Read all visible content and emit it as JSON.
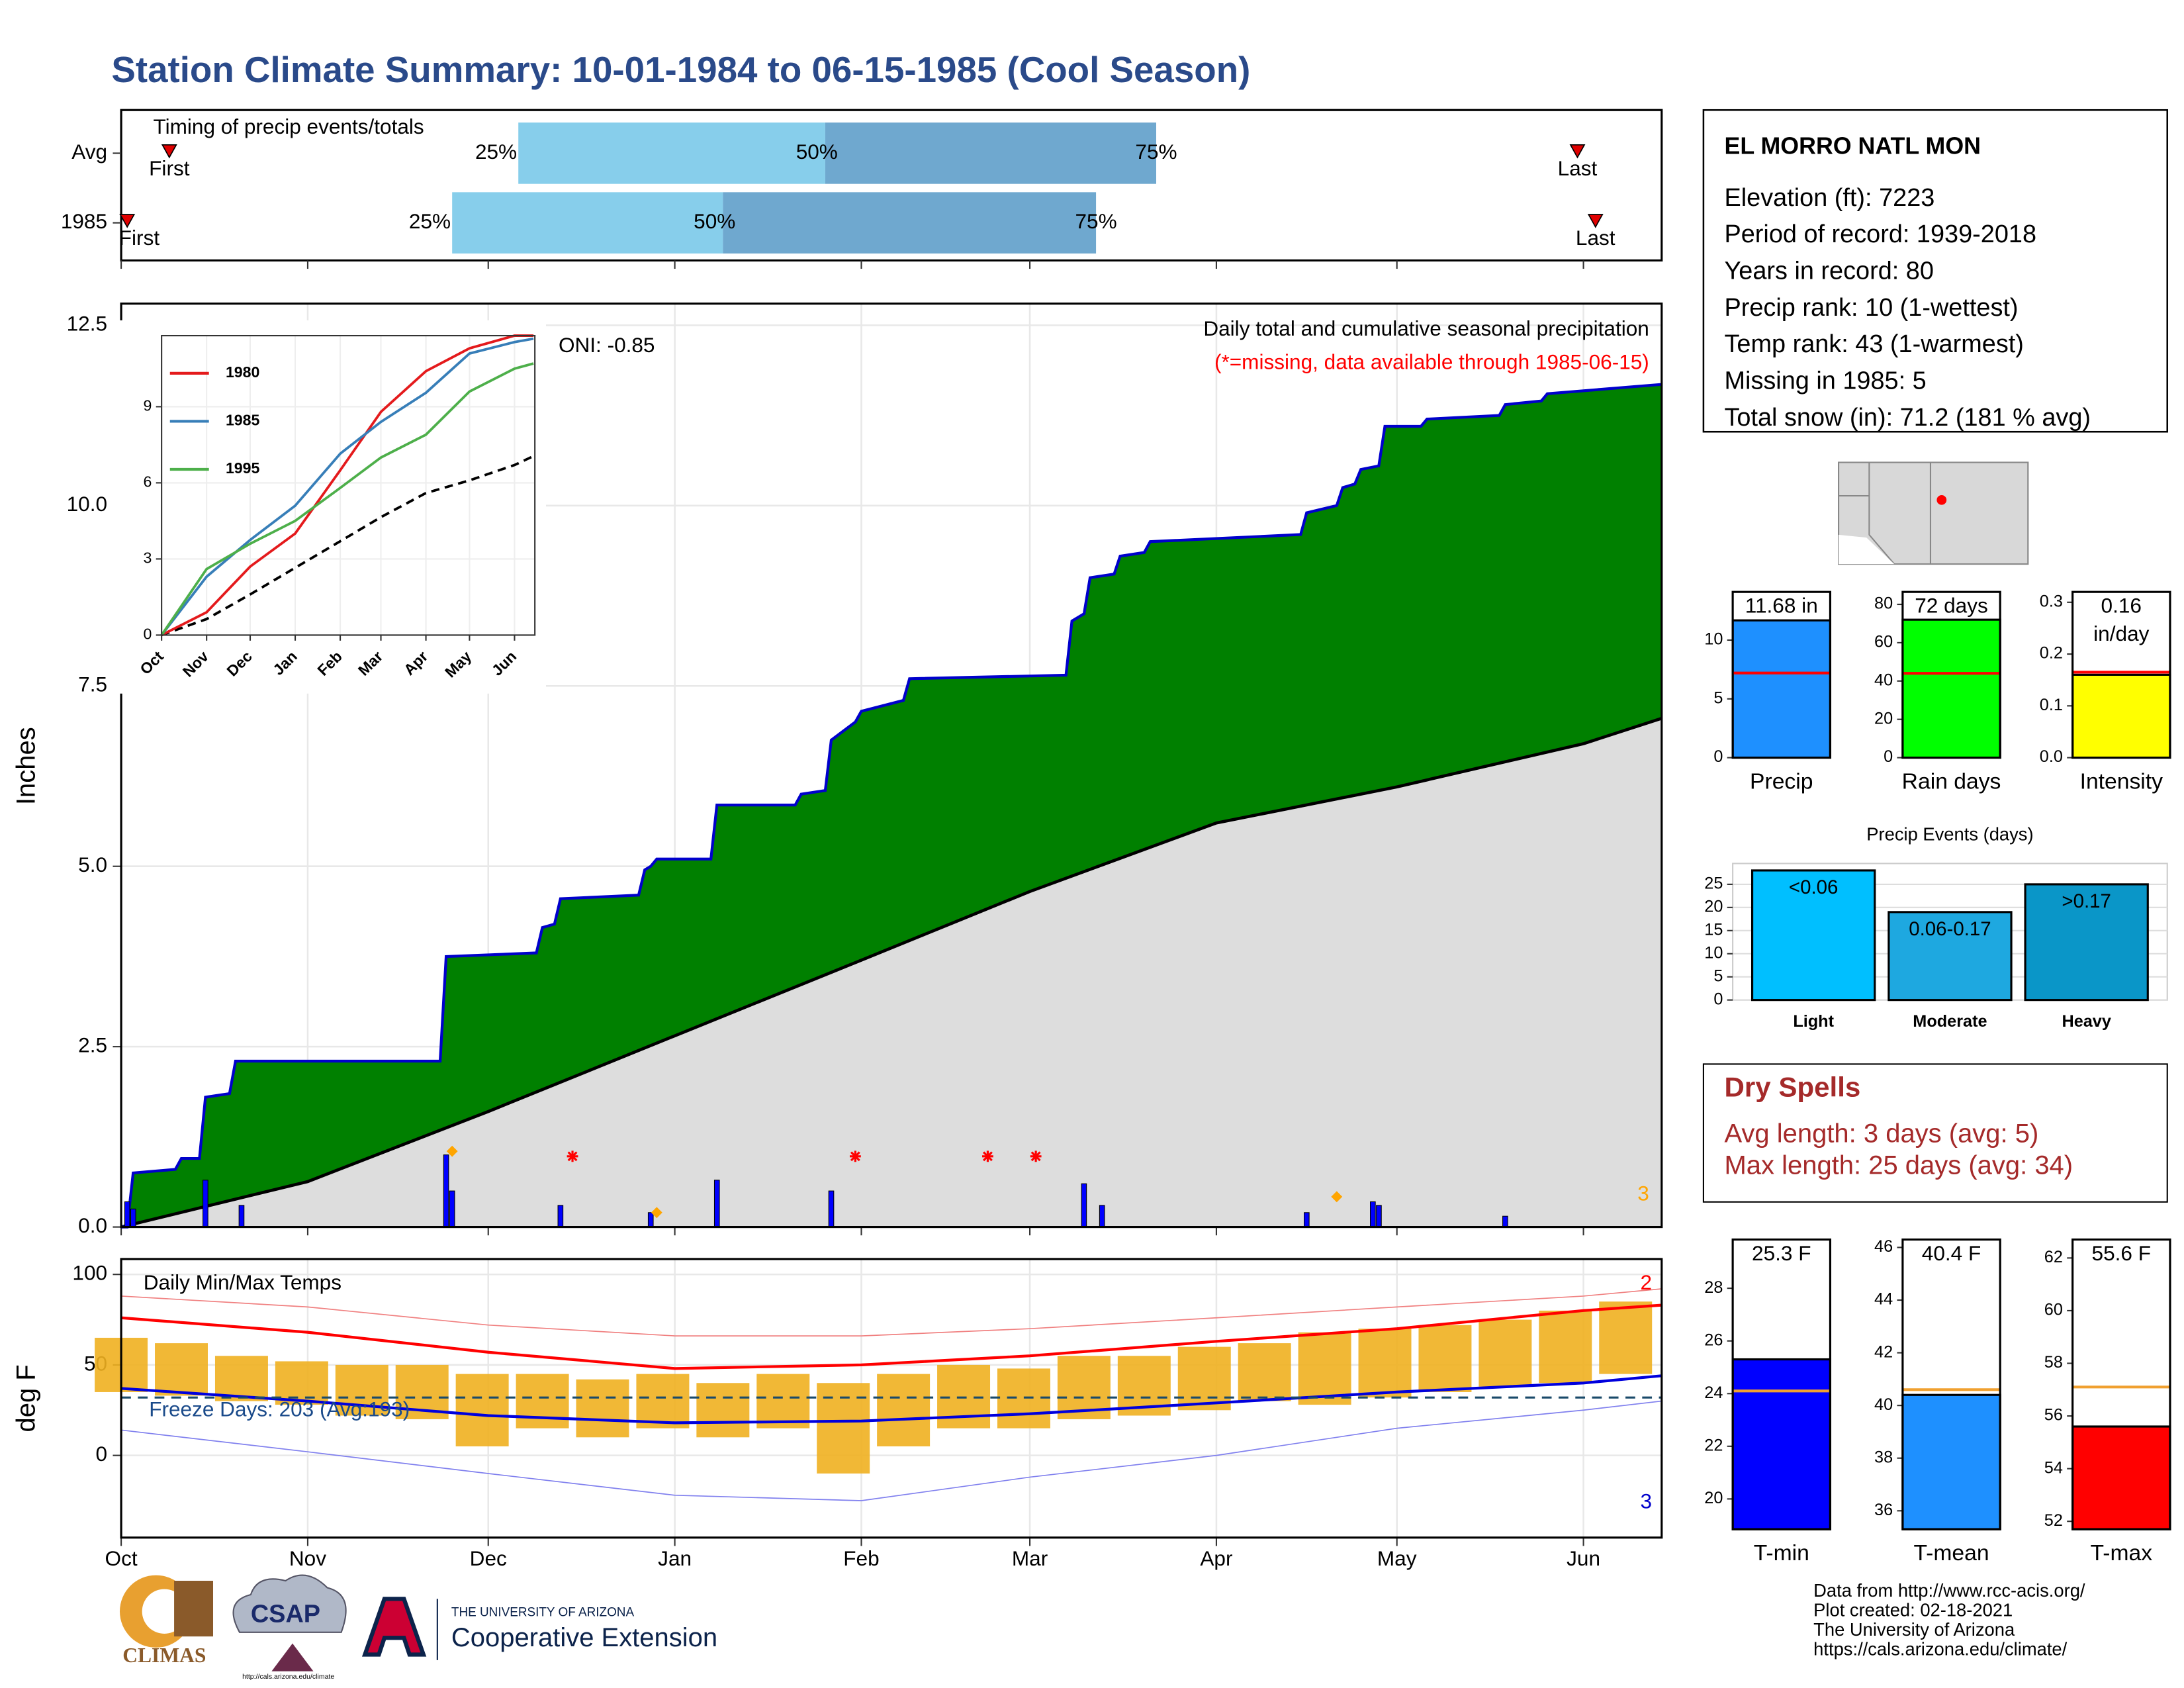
{
  "title": "Station Climate Summary: 10-01-1984 to 06-15-1985 (Cool Season)",
  "chart_data": [
    {
      "type": "timing",
      "title": "Timing of precip events/totals",
      "xlim": [
        0,
        256
      ],
      "labels": {
        "first": "First",
        "last": "Last",
        "q25": "25%",
        "q50": "50%",
        "q75": "75%"
      },
      "colors": {
        "early": "#87ceeb",
        "late": "#6fa8cf",
        "marker": "#e00000"
      },
      "rows": [
        {
          "name": "Avg",
          "first": 8,
          "q25": 66,
          "q50": 117,
          "q75": 172,
          "last": 242
        },
        {
          "name": "1985",
          "first": 1,
          "q25": 55,
          "q50": 100,
          "q75": 162,
          "last": 245
        }
      ]
    },
    {
      "type": "cumulative",
      "title": "Daily total and cumulative seasonal precipitation",
      "subtitle": "(*=missing, data available through 1985-06-15)",
      "annotation": "ONI: -0.85",
      "corner_note": "3",
      "ylabel": "Inches",
      "xlim": [
        0,
        256
      ],
      "ylim": [
        0,
        12.8
      ],
      "grid": true,
      "yticks": [
        {
          "value": 0,
          "label": "0.0"
        },
        {
          "value": 2.5,
          "label": "2.5"
        },
        {
          "value": 5,
          "label": "5.0"
        },
        {
          "value": 7.5,
          "label": "7.5"
        },
        {
          "value": 10,
          "label": "10.0"
        },
        {
          "value": 12.5,
          "label": "12.5"
        }
      ],
      "cumulative": {
        "color": "#0000cc",
        "fill": "#008000",
        "x": [
          0,
          1,
          2,
          9,
          10,
          13,
          14,
          18,
          19,
          53,
          54,
          69,
          70,
          72,
          73,
          86,
          87,
          88,
          89,
          98,
          99,
          112,
          113,
          117,
          118,
          122,
          123,
          130,
          131,
          157,
          158,
          160,
          161,
          165,
          166,
          170,
          171,
          196,
          197,
          202,
          203,
          205,
          206,
          209,
          210,
          216,
          217,
          229,
          230,
          236,
          237,
          256
        ],
        "values": [
          0,
          0,
          0.75,
          0.8,
          0.95,
          0.95,
          1.8,
          1.85,
          2.3,
          2.3,
          3.75,
          3.8,
          4.15,
          4.2,
          4.55,
          4.6,
          4.95,
          5.0,
          5.1,
          5.1,
          5.85,
          5.85,
          6.0,
          6.05,
          6.75,
          7.0,
          7.15,
          7.3,
          7.6,
          7.65,
          8.4,
          8.5,
          9.0,
          9.05,
          9.3,
          9.35,
          9.5,
          9.6,
          9.9,
          10.0,
          10.25,
          10.3,
          10.5,
          10.55,
          11.1,
          11.1,
          11.2,
          11.25,
          11.4,
          11.45,
          11.55,
          11.68
        ]
      },
      "average": {
        "color": "#000000",
        "fill": "#dddddd",
        "x": [
          0,
          31,
          61,
          92,
          123,
          151,
          182,
          212,
          243,
          256
        ],
        "values": [
          0,
          0.63,
          1.6,
          2.65,
          3.7,
          4.65,
          5.6,
          6.1,
          6.7,
          7.05
        ]
      },
      "daily": {
        "color": "#0000ff",
        "x": [
          1,
          2,
          14,
          20,
          54,
          55,
          73,
          88,
          99,
          118,
          160,
          163,
          197,
          208,
          209,
          230
        ],
        "values": [
          0.35,
          0.25,
          0.65,
          0.3,
          1.0,
          0.5,
          0.3,
          0.2,
          0.65,
          0.5,
          0.6,
          0.3,
          0.2,
          0.35,
          0.3,
          0.15
        ]
      },
      "missing": {
        "color": "#ff0000",
        "x": [
          75,
          122,
          144,
          152
        ],
        "values": [
          0.98,
          0.98,
          0.98,
          0.98
        ]
      },
      "flags": {
        "color": "#ffa500",
        "x": [
          55,
          89,
          202
        ],
        "values": [
          1.05,
          0.2,
          0.42
        ]
      }
    },
    {
      "type": "inset",
      "xlim": [
        0,
        257
      ],
      "ylim": [
        0,
        11.8
      ],
      "yticks": [
        0,
        3,
        6,
        9
      ],
      "xticks": [
        {
          "value": 0,
          "label": "Oct"
        },
        {
          "value": 31,
          "label": "Nov"
        },
        {
          "value": 61,
          "label": "Dec"
        },
        {
          "value": 92,
          "label": "Jan"
        },
        {
          "value": 123,
          "label": "Feb"
        },
        {
          "value": 151,
          "label": "Mar"
        },
        {
          "value": 182,
          "label": "Apr"
        },
        {
          "value": 212,
          "label": "May"
        },
        {
          "value": 243,
          "label": "Jun"
        }
      ],
      "x": [
        0,
        31,
        61,
        92,
        123,
        151,
        182,
        212,
        243,
        256
      ],
      "series": [
        {
          "name": "1980",
          "color": "#e41a1c",
          "values": [
            0,
            0.9,
            2.7,
            4.0,
            6.5,
            8.8,
            10.4,
            11.3,
            11.8,
            11.8
          ]
        },
        {
          "name": "1985",
          "color": "#377eb8",
          "values": [
            0,
            2.3,
            3.75,
            5.1,
            7.15,
            8.4,
            9.55,
            11.1,
            11.55,
            11.68
          ]
        },
        {
          "name": "1995",
          "color": "#4daf4a",
          "values": [
            0,
            2.6,
            3.6,
            4.5,
            5.8,
            7.0,
            7.9,
            9.6,
            10.5,
            10.7
          ]
        }
      ],
      "average": {
        "color": "#000000",
        "values": [
          0,
          0.63,
          1.6,
          2.65,
          3.7,
          4.65,
          5.6,
          6.1,
          6.7,
          7.05
        ]
      }
    },
    {
      "type": "temperature",
      "title": "Daily Min/Max Temps",
      "ylabel": "deg F",
      "annotation": "Freeze Days: 203 (Avg:193)",
      "freeze": 32,
      "xlim": [
        0,
        256
      ],
      "ylim": [
        -45.4,
        108.5
      ],
      "yticks": [
        0,
        50,
        100
      ],
      "grid": true,
      "xticks": [
        {
          "value": 0,
          "label": "Oct"
        },
        {
          "value": 31,
          "label": "Nov"
        },
        {
          "value": 61,
          "label": "Dec"
        },
        {
          "value": 92,
          "label": "Jan"
        },
        {
          "value": 123,
          "label": "Feb"
        },
        {
          "value": 151,
          "label": "Mar"
        },
        {
          "value": 182,
          "label": "Apr"
        },
        {
          "value": 212,
          "label": "May"
        },
        {
          "value": 243,
          "label": "Jun"
        }
      ],
      "x": [
        0,
        31,
        61,
        92,
        123,
        151,
        182,
        212,
        243,
        256
      ],
      "series": [
        {
          "color": "#f08080",
          "width": 0.8,
          "values": [
            88,
            82,
            72,
            66,
            66,
            70,
            76,
            82,
            88,
            92
          ]
        },
        {
          "color": "#ff0000",
          "width": 2,
          "values": [
            76,
            68,
            57,
            48,
            50,
            55,
            63,
            70,
            80,
            83
          ]
        },
        {
          "color": "#0000dd",
          "width": 2,
          "values": [
            37,
            30,
            22,
            18,
            19,
            23,
            29,
            35,
            40,
            44
          ]
        },
        {
          "color": "#8080ee",
          "width": 0.8,
          "values": [
            14,
            2,
            -10,
            -22,
            -25,
            -12,
            0,
            15,
            25,
            30
          ]
        }
      ],
      "ranges": {
        "color": "#f0b020",
        "x": [
          0,
          10,
          20,
          30,
          40,
          50,
          60,
          70,
          80,
          90,
          100,
          110,
          120,
          130,
          140,
          150,
          160,
          170,
          180,
          190,
          200,
          210,
          220,
          230,
          240,
          250
        ],
        "low": [
          35,
          33,
          30,
          28,
          22,
          20,
          5,
          15,
          10,
          15,
          10,
          15,
          -10,
          5,
          15,
          15,
          20,
          22,
          25,
          30,
          28,
          32,
          35,
          38,
          40,
          45
        ],
        "high": [
          65,
          62,
          55,
          52,
          50,
          50,
          45,
          45,
          42,
          45,
          40,
          45,
          40,
          45,
          50,
          48,
          55,
          55,
          60,
          62,
          68,
          70,
          72,
          75,
          80,
          85
        ]
      },
      "notes": [
        {
          "text": "2",
          "color": "#ff0000"
        },
        {
          "text": "3",
          "color": "#0000cc"
        }
      ]
    },
    {
      "type": "gauge",
      "label": "Precip",
      "value": 11.68,
      "value_label": "11.68 in",
      "normal": 7.2,
      "color": "#1e90ff",
      "normal_color": "#ff0000",
      "ylim": [
        0,
        14.1
      ],
      "yticks": [
        0,
        5,
        10
      ]
    },
    {
      "type": "gauge",
      "label": "Rain days",
      "value": 72,
      "value_label": "72 days",
      "normal": 44,
      "color": "#00ff00",
      "normal_color": "#ff0000",
      "ylim": [
        0,
        86.5
      ],
      "yticks": [
        0,
        20,
        40,
        60,
        80
      ]
    },
    {
      "type": "gauge",
      "label": "Intensity",
      "value": 0.16,
      "value_label": "0.16 in/day",
      "normal": 0.165,
      "color": "#ffff00",
      "normal_color": "#ff0000",
      "ylim": [
        0,
        0.32
      ],
      "yticks": [
        {
          "value": 0,
          "label": "0.0"
        },
        {
          "value": 0.1,
          "label": "0.1"
        },
        {
          "value": 0.2,
          "label": "0.2"
        },
        {
          "value": 0.3,
          "label": "0.3"
        }
      ]
    },
    {
      "type": "bar",
      "title": "Precip Events (days)",
      "categories": [
        "Light",
        "Moderate",
        "Heavy"
      ],
      "values": [
        28,
        19,
        25
      ],
      "value_labels": [
        "<0.06",
        "0.06-0.17",
        ">0.17"
      ],
      "colors": [
        "#00bfff",
        "#1ea8e0",
        "#0a96c8"
      ],
      "ylim": [
        0,
        29.5
      ],
      "yticks": [
        0,
        5,
        10,
        15,
        20,
        25
      ]
    },
    {
      "type": "gauge",
      "label": "T-min",
      "value": 25.3,
      "value_label": "25.3 F",
      "normal": 24.1,
      "color": "#0000ff",
      "normal_color": "#f0a030",
      "ylim": [
        18.85,
        29.85
      ],
      "yticks": [
        20,
        22,
        24,
        26,
        28
      ]
    },
    {
      "type": "gauge",
      "label": "T-mean",
      "value": 40.4,
      "value_label": "40.4 F",
      "normal": 40.6,
      "color": "#1e90ff",
      "normal_color": "#f0a030",
      "ylim": [
        35.3,
        46.3
      ],
      "yticks": [
        36,
        38,
        40,
        42,
        44,
        46
      ]
    },
    {
      "type": "gauge",
      "label": "T-max",
      "value": 55.6,
      "value_label": "55.6 F",
      "normal": 57.1,
      "color": "#ff0000",
      "normal_color": "#f0a030",
      "ylim": [
        51.7,
        62.7
      ],
      "yticks": [
        52,
        54,
        56,
        58,
        60,
        62
      ]
    }
  ],
  "station": {
    "name": "EL MORRO NATL MON",
    "lines": [
      "Elevation (ft): 7223",
      "Period of record: 1939-2018",
      "Years in record: 80",
      "Precip rank: 10 (1-wettest)",
      "Temp rank: 43 (1-warmest)",
      "Missing in 1985: 5",
      "Total snow (in): 71.2 (181 % avg)"
    ]
  },
  "dry_spells": {
    "title": "Dry Spells",
    "lines": [
      "Avg length: 3 days (avg: 5)",
      "Max length: 25 days (avg: 34)"
    ]
  },
  "footer": [
    "Data from http://www.rcc-acis.org/",
    "Plot created: 02-18-2021",
    "The University of Arizona",
    "https://cals.arizona.edu/climate/"
  ],
  "logos": {
    "climas": "CLIMAS",
    "csap": "CSAP",
    "csap_url": "http://cals.arizona.edu/climate",
    "ua": "THE UNIVERSITY OF ARIZONA",
    "extension": "Cooperative Extension"
  }
}
